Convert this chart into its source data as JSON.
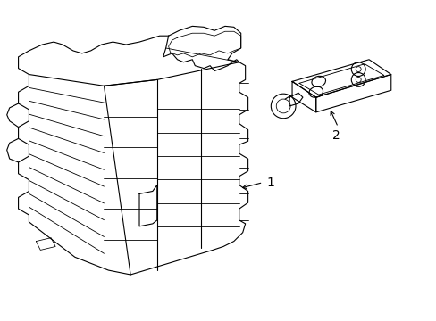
{
  "background_color": "#ffffff",
  "line_color": "#000000",
  "line_width": 0.8,
  "fig_width": 4.89,
  "fig_height": 3.6,
  "dpi": 100,
  "label1_text": "1",
  "label2_text": "2"
}
